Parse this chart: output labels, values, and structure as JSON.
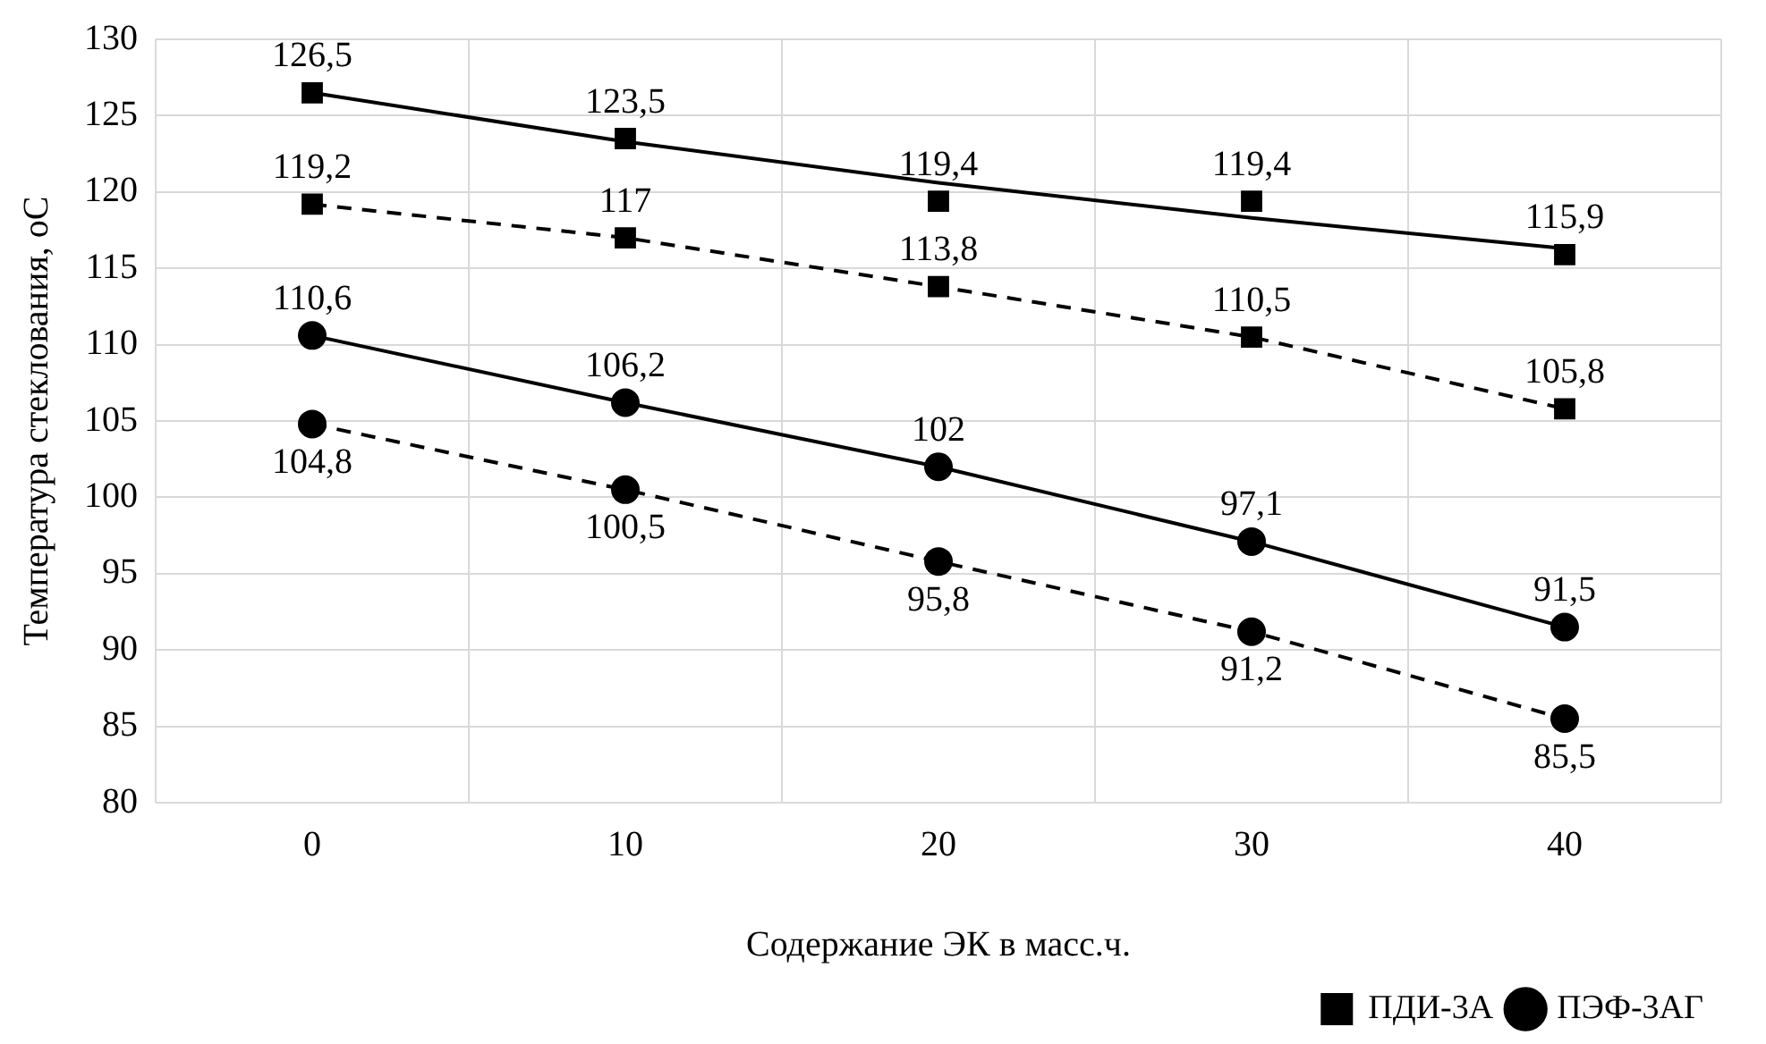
{
  "chart_data": {
    "type": "line",
    "ylabel": "Температура стеклования, оС",
    "xlabel": "Содержание ЭК в масс.ч.",
    "categories": [
      "0",
      "10",
      "20",
      "30",
      "40"
    ],
    "series": [
      {
        "name": "ПДИ-3А",
        "type": "scatter",
        "color": "#000000",
        "marker": "square",
        "values": [
          126.5,
          123.5,
          119.4,
          119.4,
          115.9
        ],
        "value_labels": [
          "126,5",
          "123,5",
          "119,4",
          "119,4",
          "115,9"
        ]
      },
      {
        "type": "line",
        "color": "#000000",
        "marker": "none",
        "line_style": "solid",
        "values": [
          126.5,
          123.3,
          120.6,
          118.3,
          116.3
        ]
      },
      {
        "type": "line",
        "color": "#000000",
        "marker": "square",
        "line_style": "dashed",
        "values": [
          119.2,
          117,
          113.8,
          110.5,
          105.8
        ],
        "value_labels": [
          "119,2",
          "117",
          "113,8",
          "110,5",
          "105,8"
        ]
      },
      {
        "name": "ПЭФ-3АГ",
        "type": "line",
        "color": "#000000",
        "marker": "circle",
        "line_style": "solid",
        "values": [
          110.6,
          106.2,
          102,
          97.1,
          91.5
        ],
        "value_labels": [
          "110,6",
          "106,2",
          "102",
          "97,1",
          "91,5"
        ]
      },
      {
        "type": "line",
        "color": "#000000",
        "marker": "circle",
        "line_style": "dashed",
        "values": [
          104.8,
          100.5,
          95.8,
          91.2,
          85.5
        ],
        "value_labels": [
          "104,8",
          "100,5",
          "95,8",
          "91,2",
          "85,5"
        ]
      }
    ],
    "ylim": [
      80,
      130
    ],
    "yticks": [
      80,
      85,
      90,
      95,
      100,
      105,
      110,
      115,
      120,
      125,
      130
    ],
    "grid": true,
    "legend": "bottom right"
  }
}
